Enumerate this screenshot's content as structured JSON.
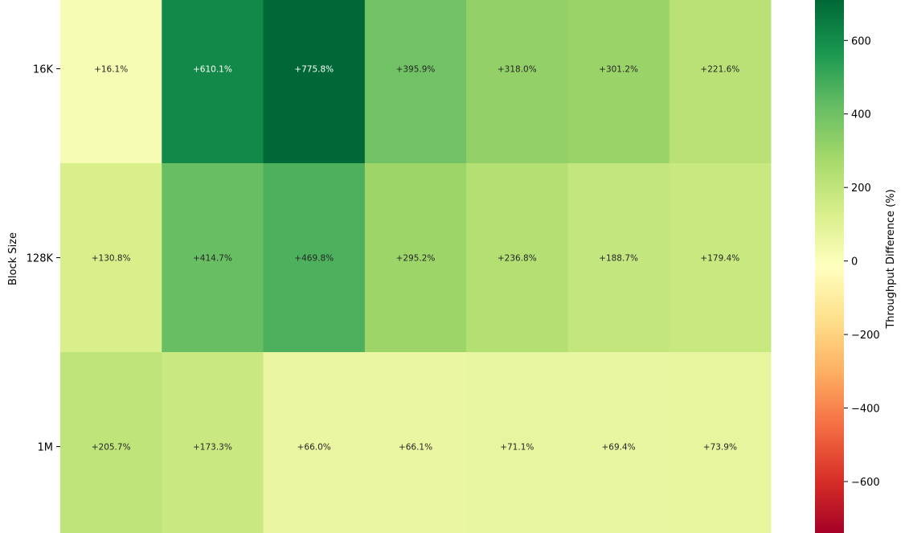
{
  "chart_data": {
    "type": "heatmap",
    "ylabel": "Block Size",
    "rows": [
      "16K",
      "128K",
      "1M"
    ],
    "values": [
      [
        16.1,
        610.1,
        775.8,
        395.9,
        318.0,
        301.2,
        221.6
      ],
      [
        130.8,
        414.7,
        469.8,
        295.2,
        236.8,
        188.7,
        179.4
      ],
      [
        205.7,
        173.3,
        66.0,
        66.1,
        71.1,
        69.4,
        73.9
      ]
    ],
    "cell_labels": [
      [
        "+16.1%",
        "+610.1%",
        "+775.8%",
        "+395.9%",
        "+318.0%",
        "+301.2%",
        "+221.6%"
      ],
      [
        "+130.8%",
        "+414.7%",
        "+469.8%",
        "+295.2%",
        "+236.8%",
        "+188.7%",
        "+179.4%"
      ],
      [
        "+205.7%",
        "+173.3%",
        "+66.0%",
        "+66.1%",
        "+71.1%",
        "+69.4%",
        "+73.9%"
      ]
    ],
    "colormap": "RdYlGn",
    "vmin": -740,
    "vmax": 710,
    "colorbar": {
      "label": "Throughput Difference (%)",
      "ticks": [
        600,
        400,
        200,
        0,
        -200,
        -400,
        -600
      ],
      "tick_labels": [
        "600",
        "400",
        "200",
        "0",
        "−200",
        "−400",
        "−600"
      ]
    }
  }
}
